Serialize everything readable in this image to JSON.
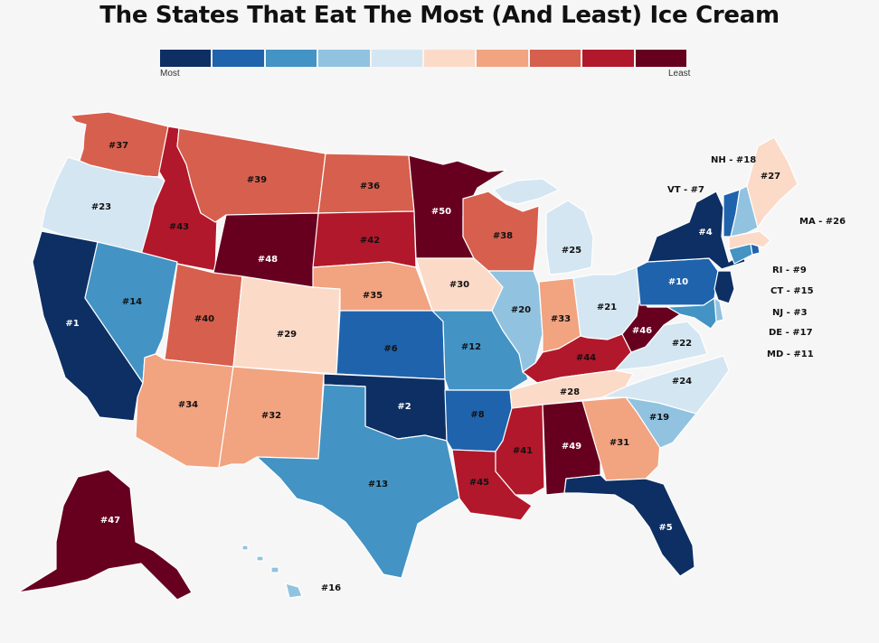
{
  "title": "The States That Eat The Most (And Least) Ice Cream",
  "legend": {
    "most_label": "Most",
    "least_label": "Least",
    "colors": [
      "#0d2f63",
      "#1f63ad",
      "#4393c4",
      "#91c3e0",
      "#d4e6f2",
      "#fcdac8",
      "#f2a380",
      "#d75f4d",
      "#b2182b",
      "#67001f"
    ]
  },
  "states": {
    "WA": "#37",
    "OR": "#23",
    "CA": "#1",
    "ID": "#43",
    "NV": "#14",
    "MT": "#39",
    "WY": "#48",
    "UT": "#40",
    "AZ": "#34",
    "CO": "#29",
    "NM": "#32",
    "ND": "#36",
    "SD": "#42",
    "NE": "#35",
    "KS": "#6",
    "OK": "#2",
    "TX": "#13",
    "MN": "#50",
    "IA": "#30",
    "MO": "#12",
    "AR": "#8",
    "LA": "#45",
    "WI": "#38",
    "IL": "#20",
    "MI": "#25",
    "IN": "#33",
    "OH": "#21",
    "KY": "#44",
    "TN": "#28",
    "MS": "#41",
    "AL": "#49",
    "GA": "#31",
    "FL": "#5",
    "SC": "#19",
    "NC": "#24",
    "VA": "#22",
    "WV": "#46",
    "PA": "#10",
    "NY": "#4",
    "ME": "#27",
    "AK": "#47",
    "HI": "#16"
  },
  "external_labels": {
    "NH": "NH - #18",
    "VT": "VT - #7",
    "MA": "MA - #26",
    "RI": "RI - #9",
    "CT": "CT - #15",
    "NJ": "NJ - #3",
    "DE": "DE - #17",
    "MD": "MD - #11"
  }
}
